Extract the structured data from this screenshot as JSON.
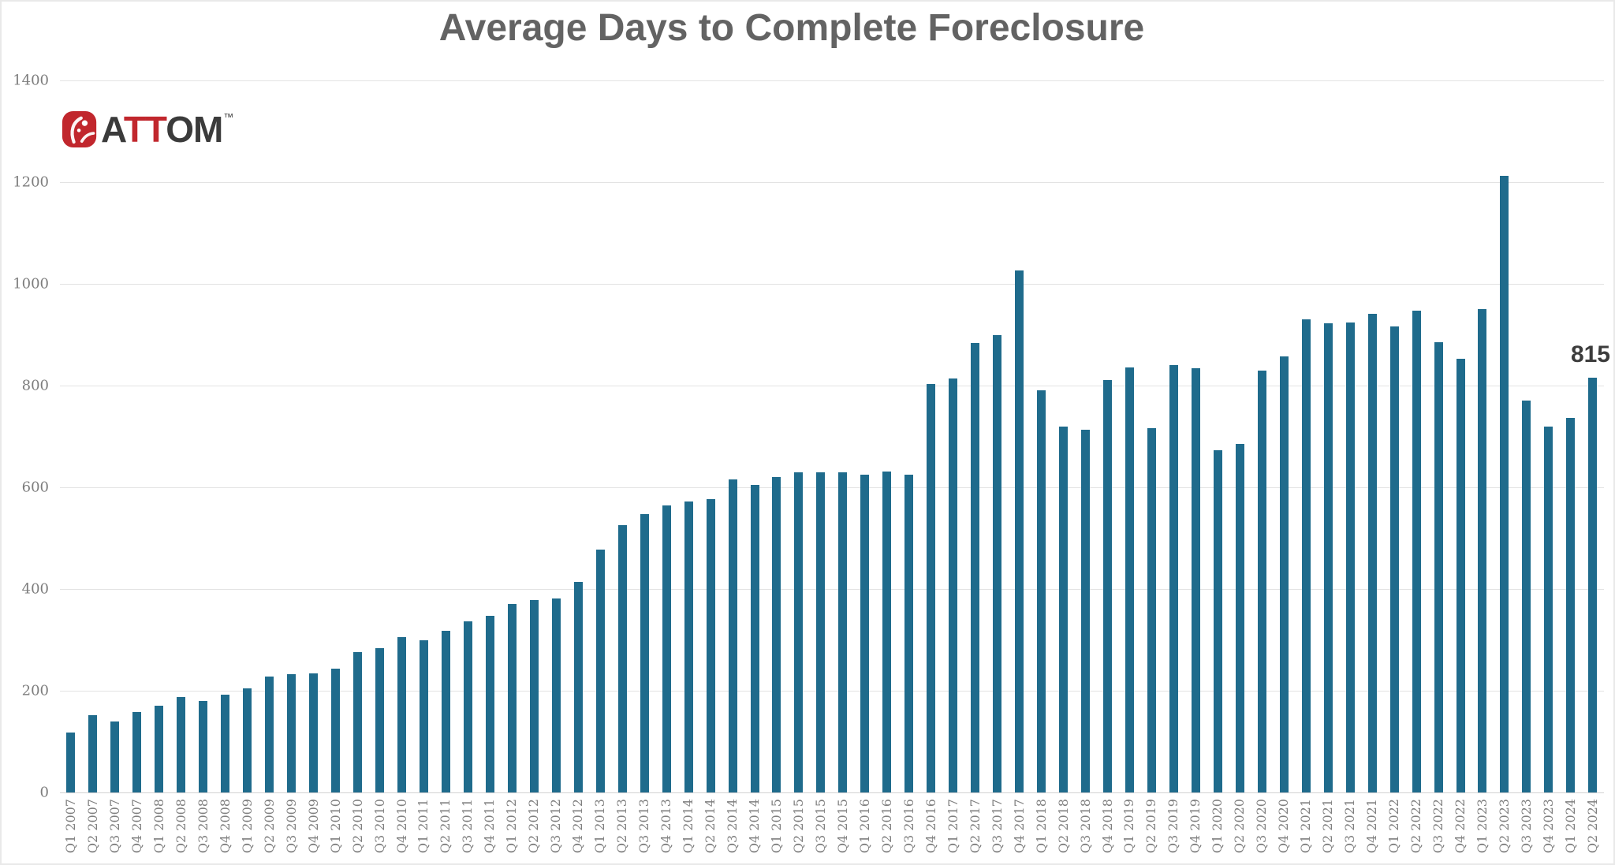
{
  "title": "Average Days to Complete Foreclosure",
  "logo": {
    "name": "ATTOM",
    "trademark": "™",
    "segments": [
      {
        "text": "A",
        "color": "dark"
      },
      {
        "text": "TT",
        "color": "red"
      },
      {
        "text": "OM",
        "color": "dark"
      }
    ]
  },
  "annotation": {
    "label": "815"
  },
  "colors": {
    "bar": "#1f6b8c",
    "title_text": "#636363",
    "axis_text": "#7d7d7d",
    "gridline": "#e3e3e3",
    "annotation_text": "#3c3c3c",
    "logo_red": "#c1272d",
    "logo_dark": "#3b3b3b",
    "background": "#ffffff"
  },
  "chart_data": {
    "type": "bar",
    "title": "Average Days to Complete Foreclosure",
    "xlabel": "",
    "ylabel": "",
    "ylim": [
      0,
      1400
    ],
    "yticks": [
      0,
      200,
      400,
      600,
      800,
      1000,
      1200,
      1400
    ],
    "ytick_labels": [
      "0",
      "200",
      "400",
      "600",
      "800",
      "1000",
      "1200",
      "1400"
    ],
    "grid": true,
    "legend": "none",
    "x_label_style": "rotated 90deg, reads bottom-to-top",
    "annotation_on_last_bar": "815",
    "categories": [
      "Q1 2007",
      "Q2 2007",
      "Q3 2007",
      "Q4 2007",
      "Q1 2008",
      "Q2 2008",
      "Q3 2008",
      "Q4 2008",
      "Q1 2009",
      "Q2 2009",
      "Q3 2009",
      "Q4 2009",
      "Q1 2010",
      "Q2 2010",
      "Q3 2010",
      "Q4 2010",
      "Q1 2011",
      "Q2 2011",
      "Q3 2011",
      "Q4 2011",
      "Q1 2012",
      "Q2 2012",
      "Q3 2012",
      "Q4 2012",
      "Q1 2013",
      "Q2 2013",
      "Q3 2013",
      "Q4 2013",
      "Q1 2014",
      "Q2 2014",
      "Q3 2014",
      "Q4 2014",
      "Q1 2015",
      "Q2 2015",
      "Q3 2015",
      "Q4 2015",
      "Q1 2016",
      "Q2 2016",
      "Q3 2016",
      "Q4 2016",
      "Q1 2017",
      "Q2 2017",
      "Q3 2017",
      "Q4 2017",
      "Q1 2018",
      "Q2 2018",
      "Q3 2018",
      "Q4 2018",
      "Q1 2019",
      "Q2 2019",
      "Q3 2019",
      "Q4 2019",
      "Q1 2020",
      "Q2 2020",
      "Q3 2020",
      "Q4 2020",
      "Q1 2021",
      "Q2 2021",
      "Q3 2021",
      "Q4 2021",
      "Q1 2022",
      "Q2 2022",
      "Q3 2022",
      "Q4 2022",
      "Q1 2023",
      "Q2 2023",
      "Q3 2023",
      "Q4 2023",
      "Q1 2024",
      "Q2 2024"
    ],
    "values": [
      118,
      152,
      139,
      158,
      171,
      188,
      180,
      192,
      204,
      228,
      232,
      234,
      243,
      276,
      283,
      305,
      300,
      318,
      336,
      348,
      370,
      378,
      382,
      414,
      477,
      526,
      547,
      564,
      572,
      577,
      615,
      604,
      620,
      629,
      630,
      629,
      625,
      631,
      625,
      803,
      814,
      883,
      899,
      1027,
      791,
      720,
      713,
      811,
      835,
      716,
      841,
      834,
      673,
      685,
      830,
      857,
      930,
      922,
      924,
      941,
      917,
      948,
      885,
      852,
      950,
      1212,
      770,
      720,
      736,
      815
    ]
  }
}
